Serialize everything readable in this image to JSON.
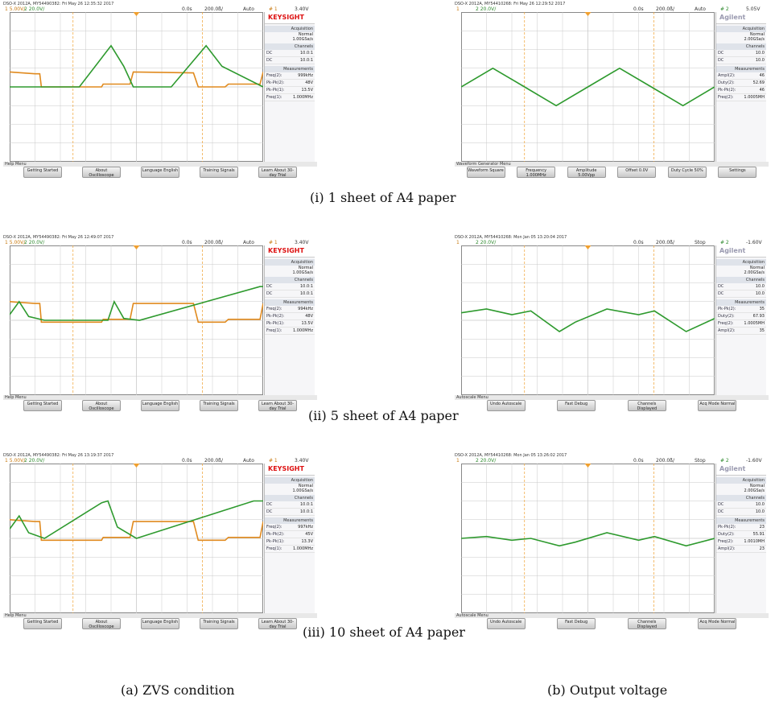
{
  "captions": {
    "row1": "(i) 1 sheet of A4 paper",
    "row2": "(ii) 5 sheet of A4 paper",
    "row3": "(iii) 10 sheet of A4 paper",
    "colA": "(a) ZVS condition",
    "colB": "(b) Output voltage"
  },
  "colors": {
    "ch1": "#e08a1e",
    "ch2": "#2e9a2e",
    "grid": "#c9c9c9",
    "cursor": "#f0a030"
  },
  "chart_data": [
    {
      "type": "line",
      "title": "(i) 1 sheet of A4 paper",
      "panel": "(a) ZVS condition",
      "header": "DSO-X 2012A, MY54490382: Fri May 26 12:35:32 2017",
      "ch1_scale": "5.00V/",
      "ch2_scale": "20.0V/",
      "delay": "0.0s",
      "timebase": "200.0ß/",
      "trig_mode": "Auto",
      "trig_ch": "1",
      "trig_level": "3.40V",
      "logo": "KEYSIGHT",
      "acquisition": {
        "label": "Acquisition",
        "mode": "Normal",
        "rate": "1.00GSa/s"
      },
      "channels": {
        "label": "Channels",
        "ch1": "10.0:1",
        "ch2": "10.0:1"
      },
      "measurements": [
        {
          "label": "Freq(2):",
          "value": "999kHz"
        },
        {
          "label": "Pk-Pk(2):",
          "value": "48V"
        },
        {
          "label": "Pk-Pk(1):",
          "value": "13.5V"
        },
        {
          "label": "Freq(1):",
          "value": "1.000MHz"
        }
      ],
      "menu": "Help Menu",
      "buttons": [
        "Getting Started",
        "About Oscilloscope",
        "Language English",
        "Training Signals",
        "Learn About 30-day Trial"
      ],
      "series": [
        {
          "name": "ch1",
          "x": [
            0,
            0.8,
            0.95,
            1.0,
            2.9,
            2.95,
            3.8,
            3.9,
            5.8,
            5.95,
            6.8,
            6.9,
            7.9,
            8.0
          ],
          "y": [
            0.8,
            0.7,
            0.7,
            0,
            0,
            0.15,
            0.15,
            0.8,
            0.75,
            0,
            0,
            0.15,
            0.15,
            0.8
          ]
        },
        {
          "name": "ch2",
          "x": [
            0,
            0.8,
            2.2,
            3.2,
            3.6,
            3.9,
            5.1,
            6.2,
            6.7,
            8.0
          ],
          "y": [
            0,
            0,
            0,
            2.2,
            1.1,
            0,
            0,
            2.2,
            1.1,
            0
          ]
        }
      ]
    },
    {
      "type": "line",
      "title": "(i) 1 sheet of A4 paper",
      "panel": "(b) Output voltage",
      "header": "DSO-X 2012A, MY54410268: Fri May 26 12:29:52 2017",
      "ch1_scale": "",
      "ch2_scale": "20.0V/",
      "delay": "0.0s",
      "timebase": "200.0ß/",
      "trig_mode": "Auto",
      "trig_ch": "2",
      "trig_level": "5.05V",
      "logo": "Agilent",
      "acquisition": {
        "label": "Acquisition",
        "mode": "Normal",
        "rate": "2.00GSa/s"
      },
      "channels": {
        "label": "Channels",
        "ch1": "10.0",
        "ch2": "10.0"
      },
      "measurements": [
        {
          "label": "Ampl(2):",
          "value": "46"
        },
        {
          "label": "Duty(2):",
          "value": "52.69"
        },
        {
          "label": "Pk-Pk(2):",
          "value": "46"
        },
        {
          "label": "Freq(2):",
          "value": "1.0005MH"
        }
      ],
      "menu": "Waveform Generator Menu",
      "buttons": [
        "Waveform Square",
        "Frequency 1.000MHz",
        "Amplitude 5.00Vpp",
        "Offset 0.0V",
        "Duty Cycle 50%",
        "Settings"
      ],
      "series": [
        {
          "name": "ch2",
          "x": [
            0,
            1,
            2,
            3,
            4,
            5,
            6,
            7,
            8
          ],
          "y": [
            0,
            1.0,
            0,
            -1.0,
            0,
            1.0,
            0,
            -1.0,
            0
          ]
        }
      ]
    },
    {
      "type": "line",
      "title": "(ii) 5 sheet of A4 paper",
      "panel": "(a) ZVS condition",
      "header": "DSO-X 2012A, MY54490382: Fri May 26 12:49:07 2017",
      "ch1_scale": "5.00V/",
      "ch2_scale": "20.0V/",
      "delay": "0.0s",
      "timebase": "200.0ß/",
      "trig_mode": "Auto",
      "trig_ch": "1",
      "trig_level": "3.40V",
      "logo": "KEYSIGHT",
      "acquisition": {
        "label": "Acquisition",
        "mode": "Normal",
        "rate": "1.00GSa/s"
      },
      "channels": {
        "label": "Channels",
        "ch1": "10.0:1",
        "ch2": "10.0:1"
      },
      "measurements": [
        {
          "label": "Freq(2):",
          "value": "994kHz"
        },
        {
          "label": "Pk-Pk(2):",
          "value": "48V"
        },
        {
          "label": "Pk-Pk(1):",
          "value": "13.5V"
        },
        {
          "label": "Freq(1):",
          "value": "1.000MHz"
        }
      ],
      "menu": "Help Menu",
      "buttons": [
        "Getting Started",
        "About Oscilloscope",
        "Language English",
        "Training Signals",
        "Learn About 30-day Trial"
      ],
      "series": [
        {
          "name": "ch1",
          "x": [
            0,
            0.8,
            0.95,
            1.0,
            2.9,
            2.95,
            3.8,
            3.9,
            5.8,
            5.95,
            6.8,
            6.9,
            7.9,
            8.0
          ],
          "y": [
            1.0,
            0.9,
            0.9,
            -0.1,
            -0.1,
            0.05,
            0.05,
            0.9,
            0.9,
            -0.1,
            -0.1,
            0.05,
            0.05,
            0.9
          ]
        },
        {
          "name": "ch2",
          "x": [
            0,
            0.3,
            0.6,
            1.1,
            3.1,
            3.3,
            3.6,
            4.1,
            7.9,
            8.0
          ],
          "y": [
            0.3,
            1.0,
            0.2,
            0,
            0,
            1.0,
            0.1,
            0,
            1.8,
            1.8
          ]
        }
      ]
    },
    {
      "type": "line",
      "title": "(ii) 5 sheet of A4 paper",
      "panel": "(b) Output voltage",
      "header": "DSO-X 2012A, MY54410268: Mon Jan 05 13:20:04 2017",
      "ch1_scale": "",
      "ch2_scale": "20.0V/",
      "delay": "0.0s",
      "timebase": "200.0ß/",
      "trig_mode": "Stop",
      "trig_ch": "2",
      "trig_level": "-1.60V",
      "logo": "Agilent",
      "acquisition": {
        "label": "Acquisition",
        "mode": "Normal",
        "rate": "2.00GSa/s"
      },
      "channels": {
        "label": "Channels",
        "ch1": "10.0",
        "ch2": "10.0"
      },
      "measurements": [
        {
          "label": "Pk-Pk(2):",
          "value": "35"
        },
        {
          "label": "Duty(2):",
          "value": "67.93"
        },
        {
          "label": "Freq(2):",
          "value": "1.0005MH"
        },
        {
          "label": "Ampl(2):",
          "value": "35"
        }
      ],
      "menu": "Autoscale Menu",
      "buttons": [
        "Undo Autoscale",
        "Fast Debug",
        "Channels Displayed",
        "Acq Mode Normal"
      ],
      "series": [
        {
          "name": "ch2",
          "x": [
            0,
            0.8,
            1.6,
            2.2,
            3.1,
            3.6,
            4.6,
            5.6,
            6.1,
            7.1,
            8
          ],
          "y": [
            0.4,
            0.6,
            0.3,
            0.5,
            -0.6,
            -0.1,
            0.6,
            0.3,
            0.5,
            -0.6,
            0.1
          ]
        }
      ]
    },
    {
      "type": "line",
      "title": "(iii) 10 sheet of A4 paper",
      "panel": "(a) ZVS condition",
      "header": "DSO-X 2012A, MY54490382: Fri May 26 13:19:37 2017",
      "ch1_scale": "5.00V/",
      "ch2_scale": "20.0V/",
      "delay": "0.0s",
      "timebase": "200.0ß/",
      "trig_mode": "Auto",
      "trig_ch": "1",
      "trig_level": "3.40V",
      "logo": "KEYSIGHT",
      "acquisition": {
        "label": "Acquisition",
        "mode": "Normal",
        "rate": "1.00GSa/s"
      },
      "channels": {
        "label": "Channels",
        "ch1": "10.0:1",
        "ch2": "10.0:1"
      },
      "measurements": [
        {
          "label": "Freq(2):",
          "value": "997kHz"
        },
        {
          "label": "Pk-Pk(2):",
          "value": "45V"
        },
        {
          "label": "Pk-Pk(1):",
          "value": "13.3V"
        },
        {
          "label": "Freq(1):",
          "value": "1.000MHz"
        }
      ],
      "menu": "Help Menu",
      "buttons": [
        "Getting Started",
        "About Oscilloscope",
        "Language English",
        "Training Signals",
        "Learn About 30-day Trial"
      ],
      "series": [
        {
          "name": "ch1",
          "x": [
            0,
            0.8,
            0.95,
            1.0,
            2.9,
            2.95,
            3.8,
            3.9,
            5.8,
            5.95,
            6.8,
            6.9,
            7.9,
            8.0
          ],
          "y": [
            1.0,
            0.9,
            0.9,
            -0.1,
            -0.1,
            0.05,
            0.05,
            0.9,
            0.9,
            -0.1,
            -0.1,
            0.05,
            0.05,
            0.9
          ]
        },
        {
          "name": "ch2",
          "x": [
            0,
            0.3,
            0.6,
            1.1,
            2.9,
            3.1,
            3.4,
            4.0,
            7.7,
            8.0
          ],
          "y": [
            0.5,
            1.2,
            0.3,
            0,
            1.9,
            2.0,
            0.6,
            0,
            2.0,
            2.0
          ]
        }
      ]
    },
    {
      "type": "line",
      "title": "(iii) 10 sheet of A4 paper",
      "panel": "(b) Output voltage",
      "header": "DSO-X 2012A, MY54410268: Mon Jan 05 13:26:02 2017",
      "ch1_scale": "",
      "ch2_scale": "20.0V/",
      "delay": "0.0s",
      "timebase": "200.0ß/",
      "trig_mode": "Stop",
      "trig_ch": "2",
      "trig_level": "-1.60V",
      "logo": "Agilent",
      "acquisition": {
        "label": "Acquisition",
        "mode": "Normal",
        "rate": "2.00GSa/s"
      },
      "channels": {
        "label": "Channels",
        "ch1": "10.0",
        "ch2": "10.0"
      },
      "measurements": [
        {
          "label": "Pk-Pk(2):",
          "value": "23"
        },
        {
          "label": "Duty(2):",
          "value": "55.91"
        },
        {
          "label": "Freq(2):",
          "value": "1.0010MH"
        },
        {
          "label": "Ampl(2):",
          "value": "23"
        }
      ],
      "menu": "Autoscale Menu",
      "buttons": [
        "Undo Autoscale",
        "Fast Debug",
        "Channels Displayed",
        "Acq Mode Normal"
      ],
      "series": [
        {
          "name": "ch2",
          "x": [
            0,
            0.8,
            1.6,
            2.2,
            3.1,
            3.6,
            4.6,
            5.6,
            6.1,
            7.1,
            8
          ],
          "y": [
            0,
            0.1,
            -0.1,
            0,
            -0.4,
            -0.2,
            0.3,
            -0.1,
            0.1,
            -0.4,
            0
          ]
        }
      ]
    }
  ]
}
